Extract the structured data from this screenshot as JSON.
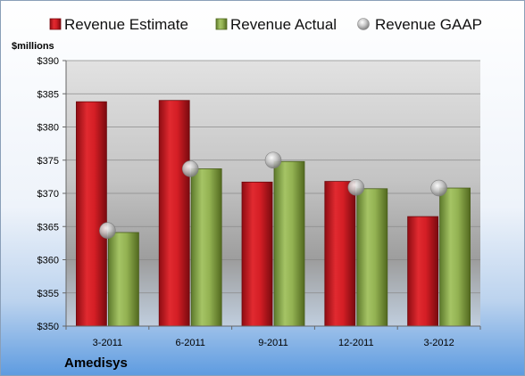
{
  "chart_data": {
    "type": "bar",
    "title": "Amedisys",
    "ylabel": "$millions",
    "xlabel": "",
    "categories": [
      "3-2011",
      "6-2011",
      "9-2011",
      "12-2011",
      "3-2012"
    ],
    "series": [
      {
        "name": "Revenue Estimate",
        "type": "bar",
        "values": [
          383.8,
          384.0,
          371.7,
          371.8,
          366.5
        ]
      },
      {
        "name": "Revenue Actual",
        "type": "bar",
        "values": [
          364.1,
          373.7,
          374.8,
          370.7,
          370.8
        ]
      },
      {
        "name": "Revenue GAAP",
        "type": "scatter",
        "values": [
          364.4,
          373.7,
          375.0,
          370.9,
          370.8
        ]
      }
    ],
    "ylim": [
      350,
      390
    ],
    "yticks": [
      350,
      355,
      360,
      365,
      370,
      375,
      380,
      385,
      390
    ],
    "ytick_labels": [
      "$350",
      "$355",
      "$360",
      "$365",
      "$370",
      "$375",
      "$380",
      "$385",
      "$390"
    ],
    "grid": true,
    "legend_position": "top"
  },
  "colors": {
    "estimate": "#c8161d",
    "actual": "#8aa84a",
    "gaap": "#b5b5b5"
  }
}
